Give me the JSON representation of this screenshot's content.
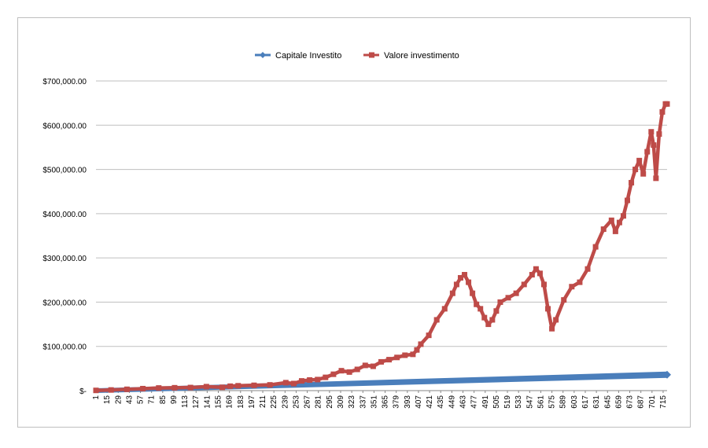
{
  "chart_data": {
    "type": "line",
    "title": "",
    "xlabel": "",
    "ylabel": "",
    "x_range": [
      1,
      720
    ],
    "x_tick_labels": [
      "1",
      "15",
      "29",
      "43",
      "57",
      "71",
      "85",
      "99",
      "113",
      "127",
      "141",
      "155",
      "169",
      "183",
      "197",
      "211",
      "225",
      "239",
      "253",
      "267",
      "281",
      "295",
      "309",
      "323",
      "337",
      "351",
      "365",
      "379",
      "393",
      "407",
      "421",
      "435",
      "449",
      "463",
      "477",
      "491",
      "505",
      "519",
      "533",
      "547",
      "561",
      "575",
      "589",
      "603",
      "617",
      "631",
      "645",
      "659",
      "673",
      "687",
      "701",
      "715"
    ],
    "y_range": [
      0,
      700000
    ],
    "y_tick_labels": [
      "$-",
      "$100,000.00",
      "$200,000.00",
      "$300,000.00",
      "$400,000.00",
      "$500,000.00",
      "$600,000.00",
      "$700,000.00"
    ],
    "y_tick_values": [
      0,
      100000,
      200000,
      300000,
      400000,
      500000,
      600000,
      700000
    ],
    "grid": true,
    "legend_position": "top-center",
    "series": [
      {
        "name": "Capitale Investito",
        "color": "#4a7ebb",
        "marker": "diamond",
        "x": [
          1,
          720
        ],
        "values": [
          50,
          36000
        ]
      },
      {
        "name": "Valore investimento",
        "color": "#be4b48",
        "marker": "square",
        "x": [
          1,
          20,
          40,
          60,
          80,
          100,
          120,
          140,
          160,
          170,
          180,
          200,
          220,
          240,
          250,
          260,
          270,
          280,
          290,
          300,
          310,
          320,
          330,
          340,
          350,
          360,
          370,
          380,
          390,
          400,
          405,
          410,
          420,
          430,
          440,
          450,
          455,
          460,
          465,
          470,
          475,
          480,
          485,
          490,
          495,
          500,
          505,
          510,
          520,
          530,
          540,
          550,
          555,
          560,
          565,
          570,
          575,
          580,
          590,
          600,
          610,
          620,
          630,
          640,
          650,
          655,
          660,
          665,
          670,
          675,
          680,
          685,
          690,
          695,
          700,
          703,
          706,
          710,
          714,
          718,
          720
        ],
        "values": [
          500,
          1500,
          3000,
          4500,
          6000,
          6500,
          7000,
          9000,
          7500,
          10000,
          11000,
          12000,
          13000,
          18000,
          16000,
          22000,
          24000,
          25000,
          30000,
          37000,
          45000,
          42000,
          48000,
          57000,
          55000,
          65000,
          70000,
          75000,
          80000,
          82000,
          92000,
          105000,
          125000,
          160000,
          185000,
          220000,
          240000,
          255000,
          262000,
          245000,
          220000,
          195000,
          185000,
          165000,
          150000,
          160000,
          180000,
          200000,
          210000,
          220000,
          240000,
          262000,
          275000,
          265000,
          240000,
          185000,
          140000,
          160000,
          205000,
          235000,
          245000,
          275000,
          325000,
          365000,
          385000,
          360000,
          380000,
          395000,
          430000,
          470000,
          500000,
          520000,
          490000,
          540000,
          585000,
          555000,
          480000,
          580000,
          630000,
          648000,
          648000
        ]
      }
    ]
  }
}
